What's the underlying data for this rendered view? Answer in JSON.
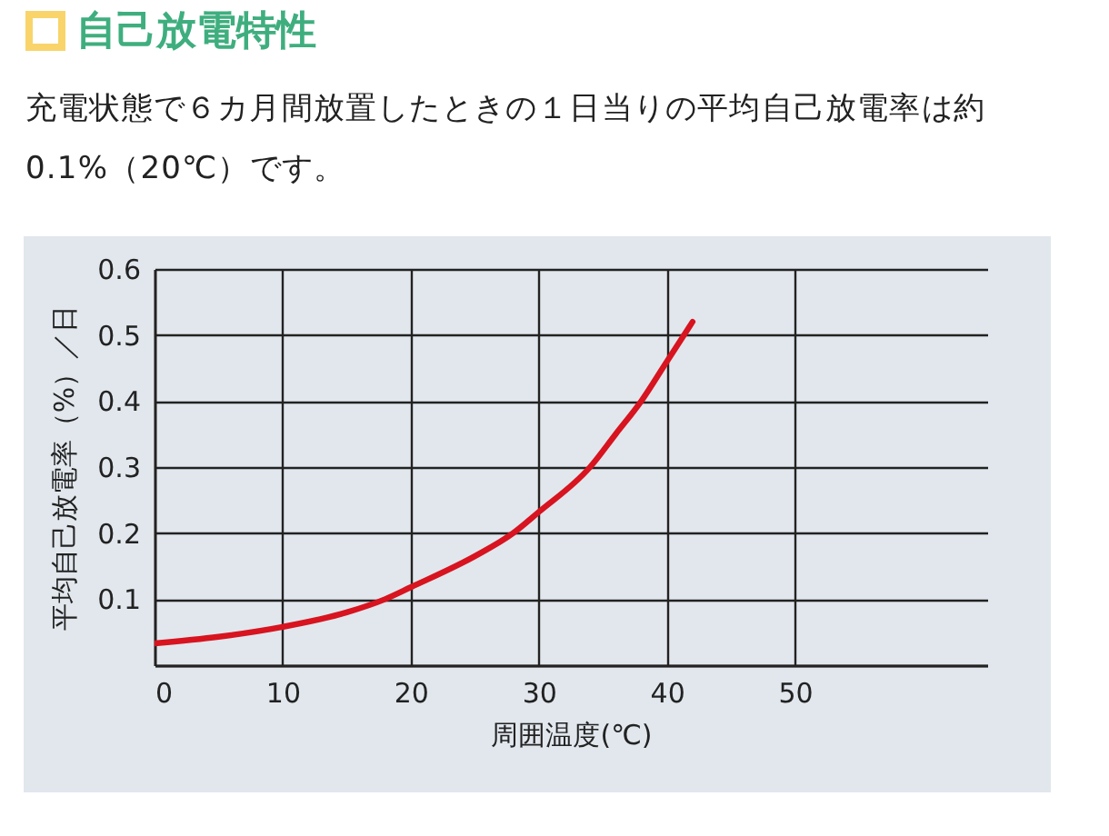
{
  "chart_data": {
    "type": "line",
    "title": "自己放電特性",
    "subtitle": "充電状態で６カ月間放置したときの１日当りの平均自己放電率は約 0.1%（20℃）です。",
    "xlabel": "周囲温度(℃)",
    "ylabel": "平均自己放電率（%）／日",
    "x": [
      0,
      5,
      10,
      15,
      18,
      20,
      25,
      28,
      30,
      34,
      36,
      38,
      40,
      42
    ],
    "series": [
      {
        "color": "#d7141f",
        "values": [
          0.033,
          0.043,
          0.058,
          0.08,
          0.1,
          0.118,
          0.165,
          0.2,
          0.232,
          0.3,
          0.35,
          0.4,
          0.46,
          0.52
        ]
      }
    ],
    "xlim": [
      0,
      65
    ],
    "xticks": [
      0,
      10,
      20,
      30,
      40,
      50
    ],
    "ylim": [
      0,
      0.6
    ],
    "yticks": [
      {
        "value": 0,
        "label": null
      },
      0.1,
      0.2,
      0.3,
      0.4,
      0.5,
      0.6
    ],
    "grid": true,
    "marker": "none",
    "line_style": "solid",
    "legend": false
  }
}
